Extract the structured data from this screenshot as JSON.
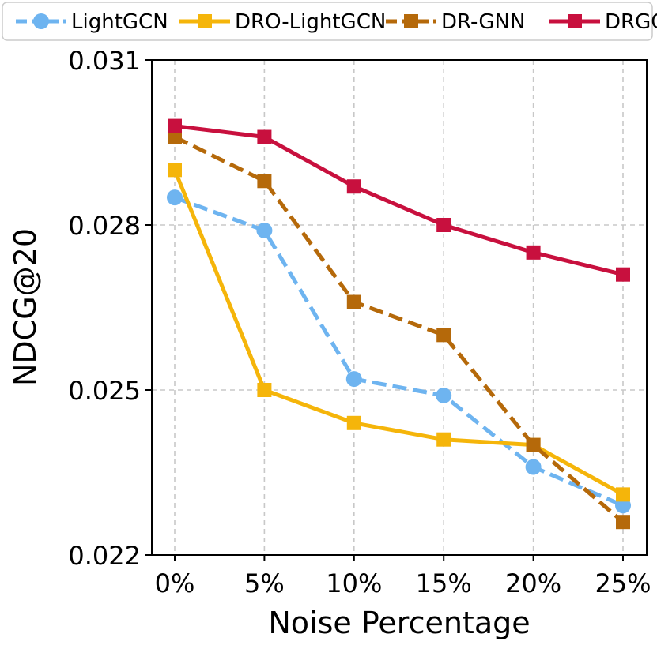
{
  "chart_data": {
    "type": "line",
    "title": "",
    "xlabel": "Noise Percentage",
    "ylabel": "NDCG@20",
    "categories": [
      "0%",
      "5%",
      "10%",
      "15%",
      "20%",
      "25%"
    ],
    "ylim": [
      0.022,
      0.031
    ],
    "yticks": [
      0.022,
      0.025,
      0.028,
      0.031
    ],
    "ytick_labels": [
      "0.022",
      "0.025",
      "0.028",
      "0.031"
    ],
    "grid": true,
    "legend_position": "top",
    "series": [
      {
        "name": "LightGCN",
        "values": [
          0.0285,
          0.0279,
          0.0252,
          0.0249,
          0.0236,
          0.0229
        ],
        "color": "#6EB4F0",
        "linestyle": "dashed",
        "marker": "circle"
      },
      {
        "name": "DRO-LightGCN",
        "values": [
          0.029,
          0.025,
          0.0244,
          0.0241,
          0.024,
          0.0231
        ],
        "color": "#F5B50A",
        "linestyle": "solid",
        "marker": "square"
      },
      {
        "name": "DR-GNN",
        "values": [
          0.0296,
          0.0288,
          0.0266,
          0.026,
          0.024,
          0.0226
        ],
        "color": "#B5690A",
        "linestyle": "dashed",
        "marker": "square"
      },
      {
        "name": "DRGO",
        "values": [
          0.0298,
          0.0296,
          0.0287,
          0.028,
          0.0275,
          0.0271
        ],
        "color": "#C8103E",
        "linestyle": "solid",
        "marker": "square"
      }
    ]
  }
}
